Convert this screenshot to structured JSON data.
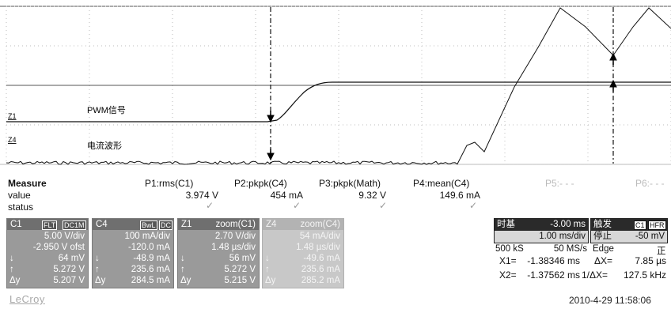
{
  "waveform": {
    "label_pwm": "PWM信号",
    "label_current": "电流波形",
    "marker_z1": "Z1",
    "marker_z4": "Z4"
  },
  "measure": {
    "title": "Measure",
    "row_value": "value",
    "row_status": "status",
    "params": [
      {
        "name": "P1:rms(C1)",
        "value": "3.974 V",
        "status": "✓"
      },
      {
        "name": "P2:pkpk(C4)",
        "value": "454 mA",
        "status": "✓"
      },
      {
        "name": "P3:pkpk(Math)",
        "value": "9.32 V",
        "status": "✓"
      },
      {
        "name": "P4:mean(C4)",
        "value": "149.6 mA",
        "status": "✓"
      },
      {
        "name": "P5:- - -",
        "value": "",
        "status": ""
      },
      {
        "name": "P6:- - -",
        "value": "",
        "status": ""
      }
    ]
  },
  "channels": [
    {
      "id": "C1",
      "tag1": "FLT",
      "tag2": "DC1M",
      "rows": [
        "5.00 V/div",
        "-2.950 V ofst",
        "64 mV",
        "5.272 V",
        "5.207 V"
      ],
      "syms": [
        "",
        "",
        "↓",
        "↑",
        "Δy"
      ]
    },
    {
      "id": "C4",
      "tag1": "BwL",
      "tag2": "DC",
      "rows": [
        "100 mA/div",
        "-120.0 mA",
        "-48.9 mA",
        "235.6 mA",
        "284.5 mA"
      ],
      "syms": [
        "",
        "",
        "↓",
        "↑",
        "Δy"
      ]
    },
    {
      "id": "Z1",
      "tag1": "zoom(C1)",
      "tag2": "",
      "rows": [
        "2.70 V/div",
        "1.48 µs/div",
        "56 mV",
        "5.272 V",
        "5.215 V"
      ],
      "syms": [
        "",
        "",
        "↓",
        "↑",
        "Δy"
      ]
    },
    {
      "id": "Z4",
      "tag1": "zoom(C4)",
      "tag2": "",
      "rows": [
        "54 mA/div",
        "1.48 µs/div",
        "-49.6 mA",
        "235.6 mA",
        "285.2 mA"
      ],
      "syms": [
        "",
        "",
        "↓",
        "↑",
        "Δy"
      ]
    }
  ],
  "timebase": {
    "title": "时基",
    "offset": "-3.00 ms",
    "div": "1.00 ms/div",
    "samples": "500 kS",
    "rate": "50 MS/s"
  },
  "trigger": {
    "title": "触发",
    "tag": "C1",
    "tag2": "HFR",
    "mode": "停止",
    "level": "-50 mV",
    "type": "Edge",
    "slope": "正"
  },
  "cursors": {
    "x1_label": "X1=",
    "x1": "-1.38346 ms",
    "x2_label": "X2=",
    "x2": "-1.37562 ms",
    "dx_label": "ΔX=",
    "dx": "7.85 µs",
    "inv_label": "1/ΔX=",
    "inv": "127.5 kHz"
  },
  "footer": {
    "brand": "LeCroy",
    "timestamp": "2010-4-29 11:58:06"
  }
}
